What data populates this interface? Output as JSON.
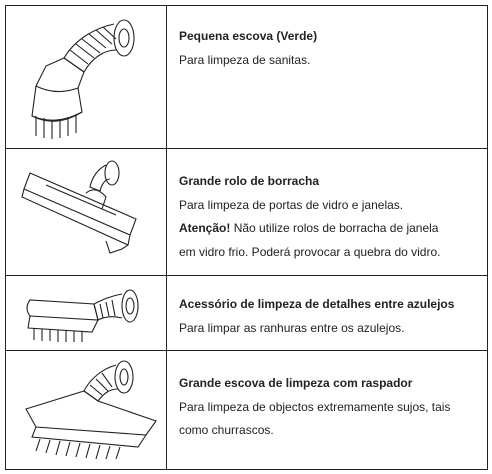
{
  "table": {
    "rows": [
      {
        "title": "Pequena escova (Verde)",
        "lines": [
          "Para limpeza de sanitas."
        ]
      },
      {
        "title": "Grande rolo de borracha",
        "lines": [
          "Para limpeza de portas de vidro e janelas."
        ],
        "warning_label": "Atenção!",
        "warning_lines": [
          "Não utilize rolos de borracha de janela",
          "em vidro frio. Poderá provocar a quebra do vidro."
        ]
      },
      {
        "title": "Acessório de limpeza de detalhes entre azulejos",
        "lines": [
          "Para limpar as ranhuras entre os azulejos."
        ]
      },
      {
        "title": "Grande escova de limpeza com raspador",
        "lines": [
          "Para limpeza de objectos extremamente sujos, tais",
          "como churrascos."
        ]
      }
    ]
  }
}
